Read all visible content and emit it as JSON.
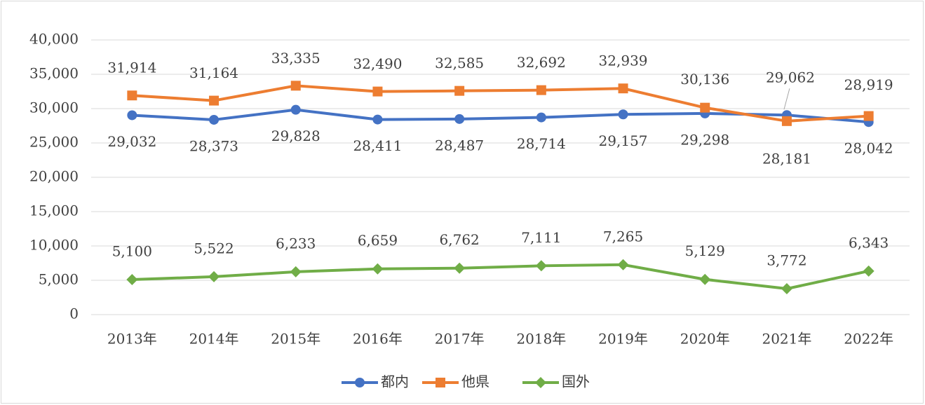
{
  "chart_data": {
    "type": "line",
    "categories": [
      "2013年",
      "2014年",
      "2015年",
      "2016年",
      "2017年",
      "2018年",
      "2019年",
      "2020年",
      "2021年",
      "2022年"
    ],
    "series": [
      {
        "name": "都内",
        "color": "#4472c4",
        "marker": "circle",
        "values": [
          29032,
          28373,
          29828,
          28411,
          28487,
          28714,
          29157,
          29298,
          29062,
          28042
        ],
        "value_labels": [
          "29,032",
          "28,373",
          "29,828",
          "28,411",
          "28,487",
          "28,714",
          "29,157",
          "29,298",
          "29,062",
          "28,042"
        ]
      },
      {
        "name": "他県",
        "color": "#ed7d31",
        "marker": "square",
        "values": [
          31914,
          31164,
          33335,
          32490,
          32585,
          32692,
          32939,
          30136,
          28181,
          28919
        ],
        "value_labels": [
          "31,914",
          "31,164",
          "33,335",
          "32,490",
          "32,585",
          "32,692",
          "32,939",
          "30,136",
          "28,181",
          "28,919"
        ]
      },
      {
        "name": "国外",
        "color": "#70ad47",
        "marker": "diamond",
        "values": [
          5100,
          5522,
          6233,
          6659,
          6762,
          7111,
          7265,
          5129,
          3772,
          6343
        ],
        "value_labels": [
          "5,100",
          "5,522",
          "6,233",
          "6,659",
          "6,762",
          "7,111",
          "7,265",
          "5,129",
          "3,772",
          "6,343"
        ]
      }
    ],
    "ylim": [
      0,
      40000
    ],
    "yticks": [
      0,
      {
        "value": 5000,
        "label": "5,000"
      },
      {
        "value": 10000,
        "label": "10,000"
      },
      {
        "value": 15000,
        "label": "15,000"
      },
      {
        "value": 20000,
        "label": "20,000"
      },
      {
        "value": 25000,
        "label": "25,000"
      },
      {
        "value": 30000,
        "label": "30,000"
      },
      {
        "value": 35000,
        "label": "35,000"
      },
      {
        "value": 40000,
        "label": "40,000"
      }
    ],
    "grid": true,
    "legend": "bottom"
  }
}
